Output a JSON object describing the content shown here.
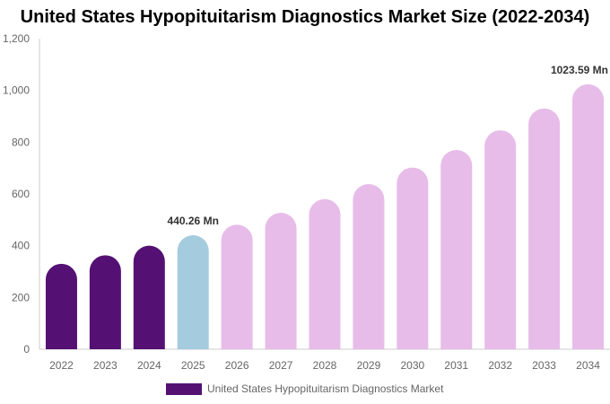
{
  "chart_data": {
    "type": "bar",
    "title": "United States Hypopituitarism Diagnostics Market Size (2022-2034)",
    "categories": [
      "2022",
      "2023",
      "2024",
      "2025",
      "2026",
      "2027",
      "2028",
      "2029",
      "2030",
      "2031",
      "2032",
      "2033",
      "2034"
    ],
    "series": [
      {
        "name": "United States Hypopituitarism Diagnostics Market",
        "values": [
          330,
          363,
          400,
          440.26,
          481,
          527,
          580,
          638,
          702,
          770,
          846,
          930,
          1023.59
        ]
      }
    ],
    "annotations": [
      {
        "category": "2025",
        "text": "440.26 Mn"
      },
      {
        "category": "2034",
        "text": "1023.59 Mn"
      }
    ],
    "bar_colors": [
      "#541173",
      "#541173",
      "#541173",
      "#a4cbde",
      "#e7bce9",
      "#e7bce9",
      "#e7bce9",
      "#e7bce9",
      "#e7bce9",
      "#e7bce9",
      "#e7bce9",
      "#e7bce9",
      "#e7bce9"
    ],
    "y_ticks": [
      "0",
      "200",
      "400",
      "600",
      "800",
      "1,000",
      "1,200"
    ],
    "ylim": [
      0,
      1200
    ],
    "grid": false,
    "legend_position": "bottom",
    "legend_color": "#541173",
    "axis_color": "#cccccc"
  }
}
